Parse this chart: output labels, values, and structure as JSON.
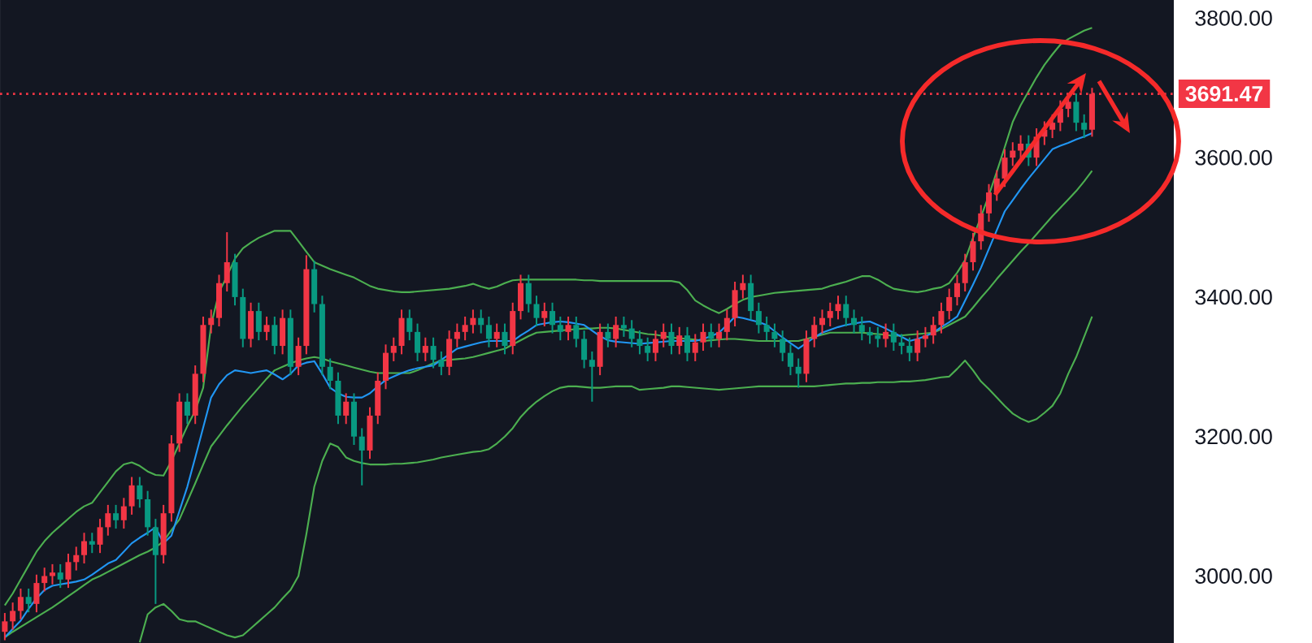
{
  "chart_data": {
    "type": "candlestick",
    "categories": [
      null,
      null,
      null,
      null,
      null,
      null,
      null,
      null,
      null,
      null,
      null,
      null,
      null,
      null,
      null,
      null,
      null,
      null,
      null,
      null,
      null,
      null,
      null,
      null,
      null,
      null,
      null,
      null,
      null,
      null,
      null,
      null,
      null,
      null,
      null,
      null,
      null,
      null,
      null,
      null,
      null,
      null,
      null,
      null,
      null,
      null,
      null,
      null,
      null,
      null,
      null,
      null,
      null,
      null,
      null,
      null,
      null,
      null,
      null,
      null,
      null,
      null,
      null,
      null,
      null,
      null,
      null,
      null,
      null,
      null,
      null,
      null,
      null,
      null,
      null,
      null,
      null,
      null,
      null,
      null,
      null,
      null,
      null,
      null,
      null,
      null,
      null,
      null,
      null,
      null,
      null,
      null,
      null,
      null,
      null,
      null,
      null,
      null,
      null,
      null,
      null,
      null,
      null,
      null,
      null,
      null,
      null,
      null,
      null,
      null,
      null,
      null,
      null,
      null,
      null,
      null,
      null,
      null,
      null,
      null,
      null,
      null,
      null,
      null,
      null,
      null,
      null,
      null,
      null,
      null,
      null,
      null,
      null,
      null,
      null,
      null,
      null,
      null
    ],
    "ylim": [
      2904,
      3826
    ],
    "yticks": [
      {
        "value": 3000,
        "label": "3000.00"
      },
      {
        "value": 3200,
        "label": "3200.00"
      },
      {
        "value": 3400,
        "label": "3400.00"
      },
      {
        "value": 3600,
        "label": "3600.00"
      },
      {
        "value": 3800,
        "label": "3800.00"
      }
    ],
    "tick_labels": "y",
    "ref_lines": [
      {
        "axis": "y",
        "value": 3691.47,
        "label": "3691.47",
        "color": "#f23645",
        "line_style": "dotted"
      }
    ],
    "series": [
      {
        "type": "line",
        "color": "#4caf50",
        "values": [
          2958,
          2975,
          2995,
          3015,
          3035,
          3050,
          3062,
          3072,
          3082,
          3092,
          3100,
          3105,
          3120,
          3135,
          3150,
          3160,
          3163,
          3158,
          3150,
          3145,
          3144,
          3165,
          3190,
          3215,
          3237,
          3270,
          3360,
          3407,
          3430,
          3455,
          3470,
          3478,
          3485,
          3490,
          3495,
          3495,
          3495,
          3480,
          3465,
          3450,
          3445,
          3440,
          3436,
          3432,
          3428,
          3422,
          3416,
          3412,
          3410,
          3408,
          3407,
          3407,
          3408,
          3409,
          3410,
          3411,
          3412,
          3414,
          3416,
          3419,
          3415,
          3412,
          3415,
          3420,
          3424,
          3425,
          3425,
          3425,
          3425,
          3425,
          3425,
          3425,
          3425,
          3424,
          3424,
          3423,
          3423,
          3423,
          3423,
          3423,
          3423,
          3423,
          3423,
          3423,
          3423,
          3421,
          3410,
          3395,
          3388,
          3382,
          3377,
          3383,
          3390,
          3396,
          3400,
          3402,
          3404,
          3406,
          3407,
          3408,
          3409,
          3410,
          3411,
          3412,
          3416,
          3419,
          3422,
          3426,
          3430,
          3430,
          3425,
          3418,
          3412,
          3410,
          3408,
          3407,
          3409,
          3412,
          3414,
          3420,
          3435,
          3453,
          3485,
          3515,
          3546,
          3580,
          3615,
          3651,
          3675,
          3695,
          3715,
          3733,
          3748,
          3762,
          3770,
          3776,
          3782,
          3786
        ]
      },
      {
        "type": "line",
        "color": "#4caf50",
        "values": [
          2912,
          2920,
          2927,
          2934,
          2941,
          2948,
          2955,
          2963,
          2971,
          2979,
          2987,
          2995,
          3000,
          3006,
          3012,
          3018,
          3024,
          3030,
          3035,
          3041,
          3050,
          3066,
          3081,
          3107,
          3133,
          3160,
          3186,
          3201,
          3216,
          3230,
          3244,
          3257,
          3270,
          3283,
          3295,
          3300,
          3305,
          3309,
          3312,
          3314,
          3312,
          3308,
          3305,
          3302,
          3299,
          3296,
          3293,
          3291,
          3291,
          3291,
          3291,
          3291,
          3295,
          3300,
          3305,
          3309,
          3310,
          3311,
          3312,
          3314,
          3317,
          3320,
          3323,
          3326,
          3332,
          3338,
          3344,
          3349,
          3350,
          3351,
          3352,
          3353,
          3354,
          3355,
          3355,
          3356,
          3356,
          3355,
          3353,
          3351,
          3349,
          3347,
          3346,
          3344,
          3342,
          3341,
          3340,
          3339,
          3337,
          3338,
          3339,
          3340,
          3340,
          3339,
          3338,
          3337,
          3337,
          3337,
          3337,
          3337,
          3337,
          3340,
          3343,
          3346,
          3349,
          3349,
          3349,
          3349,
          3349,
          3348,
          3347,
          3346,
          3344,
          3345,
          3346,
          3347,
          3348,
          3349,
          3354,
          3360,
          3366,
          3372,
          3385,
          3399,
          3412,
          3426,
          3439,
          3452,
          3465,
          3477,
          3490,
          3503,
          3516,
          3528,
          3540,
          3552,
          3566,
          3581
        ]
      },
      {
        "type": "line",
        "color": "#4caf50",
        "values": [
          null,
          null,
          null,
          null,
          null,
          null,
          null,
          null,
          null,
          null,
          null,
          null,
          null,
          null,
          null,
          null,
          null,
          2905,
          2945,
          2955,
          2960,
          2950,
          2938,
          2935,
          2935,
          2930,
          2925,
          2920,
          2915,
          2912,
          2915,
          2925,
          2935,
          2945,
          2955,
          2968,
          2980,
          3000,
          3060,
          3128,
          3165,
          3190,
          3185,
          3170,
          3165,
          3162,
          3160,
          3160,
          3160,
          3161,
          3161,
          3162,
          3163,
          3165,
          3167,
          3170,
          3172,
          3174,
          3176,
          3178,
          3179,
          3182,
          3190,
          3200,
          3212,
          3228,
          3240,
          3250,
          3258,
          3265,
          3270,
          3272,
          3272,
          3271,
          3270,
          3270,
          3271,
          3272,
          3272,
          3272,
          3267,
          3268,
          3269,
          3270,
          3272,
          3272,
          3271,
          3270,
          3269,
          3268,
          3267,
          3268,
          3269,
          3270,
          3271,
          3272,
          3272,
          3272,
          3272,
          3272,
          3272,
          3272,
          3272,
          3273,
          3274,
          3275,
          3276,
          3276,
          3277,
          3277,
          3278,
          3278,
          3278,
          3279,
          3279,
          3280,
          3281,
          3283,
          3285,
          3286,
          3297,
          3309,
          3295,
          3279,
          3268,
          3256,
          3244,
          3233,
          3226,
          3221,
          3225,
          3234,
          3244,
          3262,
          3290,
          3314,
          3343,
          3372
        ]
      },
      {
        "type": "line",
        "color": "#2196f3",
        "values": [
          2912,
          2924,
          2936,
          2953,
          2968,
          2980,
          2986,
          2988,
          2990,
          2992,
          2995,
          3002,
          3010,
          3018,
          3023,
          3035,
          3047,
          3055,
          3062,
          3070,
          3047,
          3058,
          3093,
          3128,
          3170,
          3213,
          3256,
          3275,
          3288,
          3295,
          3293,
          3291,
          3293,
          3295,
          3289,
          3282,
          3290,
          3302,
          3306,
          3308,
          3290,
          3270,
          3262,
          3257,
          3256,
          3256,
          3262,
          3272,
          3281,
          3286,
          3291,
          3295,
          3298,
          3300,
          3302,
          3310,
          3318,
          3326,
          3329,
          3332,
          3335,
          3337,
          3337,
          3337,
          3337,
          3345,
          3352,
          3360,
          3362,
          3364,
          3365,
          3364,
          3362,
          3360,
          3352,
          3344,
          3338,
          3336,
          3335,
          3334,
          3333,
          3334,
          3335,
          3336,
          3337,
          3337,
          3337,
          3337,
          3340,
          3344,
          3349,
          3360,
          3372,
          3370,
          3367,
          3364,
          3360,
          3351,
          3342,
          3334,
          3326,
          3334,
          3342,
          3349,
          3353,
          3357,
          3360,
          3362,
          3364,
          3365,
          3360,
          3355,
          3349,
          3343,
          3337,
          3340,
          3344,
          3349,
          3357,
          3364,
          3372,
          3395,
          3418,
          3442,
          3469,
          3496,
          3523,
          3539,
          3555,
          3570,
          3584,
          3598,
          3612,
          3617,
          3621,
          3626,
          3630,
          3635
        ]
      },
      {
        "ohlc": [
          [
            2920,
            2947,
            2908,
            2935
          ],
          [
            2935,
            2962,
            2923,
            2950
          ],
          [
            2950,
            2982,
            2938,
            2970
          ],
          [
            2970,
            2982,
            2948,
            2960
          ],
          [
            2960,
            3002,
            2948,
            2990
          ],
          [
            2990,
            3012,
            2978,
            3000
          ],
          [
            3000,
            3017,
            2988,
            3005
          ],
          [
            3005,
            3017,
            2983,
            2995
          ],
          [
            2995,
            3032,
            2983,
            3020
          ],
          [
            3020,
            3042,
            3008,
            3030
          ],
          [
            3030,
            3062,
            3018,
            3050
          ],
          [
            3050,
            3062,
            3033,
            3045
          ],
          [
            3045,
            3082,
            3033,
            3070
          ],
          [
            3070,
            3102,
            3058,
            3090
          ],
          [
            3090,
            3102,
            3068,
            3080
          ],
          [
            3080,
            3112,
            3068,
            3100
          ],
          [
            3100,
            3142,
            3088,
            3130
          ],
          [
            3130,
            3142,
            3098,
            3110
          ],
          [
            3110,
            3122,
            3058,
            3070
          ],
          [
            3070,
            3082,
            2960,
            3030
          ],
          [
            3030,
            3102,
            3018,
            3090
          ],
          [
            3090,
            3202,
            3078,
            3190
          ],
          [
            3190,
            3262,
            3178,
            3250
          ],
          [
            3250,
            3262,
            3218,
            3230
          ],
          [
            3230,
            3302,
            3218,
            3290
          ],
          [
            3290,
            3372,
            3278,
            3360
          ],
          [
            3360,
            3382,
            3348,
            3370
          ],
          [
            3370,
            3432,
            3358,
            3420
          ],
          [
            3420,
            3493,
            3408,
            3450
          ],
          [
            3450,
            3462,
            3388,
            3400
          ],
          [
            3400,
            3412,
            3328,
            3340
          ],
          [
            3340,
            3392,
            3328,
            3380
          ],
          [
            3380,
            3392,
            3338,
            3350
          ],
          [
            3350,
            3372,
            3338,
            3360
          ],
          [
            3360,
            3372,
            3318,
            3330
          ],
          [
            3330,
            3382,
            3318,
            3370
          ],
          [
            3370,
            3382,
            3288,
            3300
          ],
          [
            3300,
            3342,
            3288,
            3330
          ],
          [
            3330,
            3460,
            3318,
            3440
          ],
          [
            3440,
            3452,
            3378,
            3390
          ],
          [
            3390,
            3402,
            3288,
            3300
          ],
          [
            3300,
            3312,
            3268,
            3280
          ],
          [
            3280,
            3292,
            3218,
            3230
          ],
          [
            3230,
            3262,
            3218,
            3250
          ],
          [
            3250,
            3262,
            3188,
            3200
          ],
          [
            3200,
            3212,
            3130,
            3180
          ],
          [
            3180,
            3242,
            3168,
            3230
          ],
          [
            3230,
            3292,
            3218,
            3280
          ],
          [
            3280,
            3332,
            3268,
            3320
          ],
          [
            3320,
            3342,
            3308,
            3330
          ],
          [
            3330,
            3382,
            3318,
            3370
          ],
          [
            3370,
            3382,
            3338,
            3350
          ],
          [
            3350,
            3362,
            3308,
            3320
          ],
          [
            3320,
            3342,
            3308,
            3330
          ],
          [
            3330,
            3342,
            3298,
            3310
          ],
          [
            3310,
            3322,
            3288,
            3300
          ],
          [
            3300,
            3352,
            3288,
            3340
          ],
          [
            3340,
            3362,
            3328,
            3350
          ],
          [
            3350,
            3372,
            3338,
            3360
          ],
          [
            3360,
            3382,
            3348,
            3370
          ],
          [
            3370,
            3382,
            3348,
            3360
          ],
          [
            3360,
            3372,
            3328,
            3340
          ],
          [
            3340,
            3362,
            3328,
            3350
          ],
          [
            3350,
            3362,
            3318,
            3330
          ],
          [
            3330,
            3392,
            3318,
            3380
          ],
          [
            3380,
            3432,
            3368,
            3420
          ],
          [
            3420,
            3432,
            3378,
            3390
          ],
          [
            3390,
            3402,
            3358,
            3370
          ],
          [
            3370,
            3392,
            3358,
            3380
          ],
          [
            3380,
            3392,
            3348,
            3360
          ],
          [
            3360,
            3372,
            3338,
            3350
          ],
          [
            3350,
            3372,
            3338,
            3360
          ],
          [
            3360,
            3372,
            3328,
            3340
          ],
          [
            3340,
            3352,
            3298,
            3310
          ],
          [
            3310,
            3322,
            3250,
            3300
          ],
          [
            3300,
            3362,
            3288,
            3350
          ],
          [
            3350,
            3362,
            3328,
            3340
          ],
          [
            3340,
            3372,
            3328,
            3360
          ],
          [
            3360,
            3372,
            3343,
            3355
          ],
          [
            3355,
            3367,
            3328,
            3340
          ],
          [
            3340,
            3352,
            3318,
            3330
          ],
          [
            3330,
            3342,
            3308,
            3320
          ],
          [
            3320,
            3352,
            3308,
            3340
          ],
          [
            3340,
            3362,
            3328,
            3350
          ],
          [
            3350,
            3362,
            3318,
            3330
          ],
          [
            3330,
            3357,
            3318,
            3345
          ],
          [
            3345,
            3357,
            3308,
            3320
          ],
          [
            3320,
            3347,
            3308,
            3335
          ],
          [
            3335,
            3362,
            3323,
            3350
          ],
          [
            3350,
            3362,
            3328,
            3340
          ],
          [
            3340,
            3362,
            3328,
            3350
          ],
          [
            3350,
            3382,
            3338,
            3370
          ],
          [
            3370,
            3422,
            3358,
            3410
          ],
          [
            3410,
            3432,
            3398,
            3420
          ],
          [
            3420,
            3432,
            3368,
            3380
          ],
          [
            3380,
            3392,
            3348,
            3360
          ],
          [
            3360,
            3372,
            3338,
            3350
          ],
          [
            3350,
            3362,
            3328,
            3340
          ],
          [
            3340,
            3352,
            3308,
            3320
          ],
          [
            3320,
            3332,
            3288,
            3300
          ],
          [
            3300,
            3312,
            3270,
            3290
          ],
          [
            3290,
            3352,
            3278,
            3340
          ],
          [
            3340,
            3372,
            3328,
            3360
          ],
          [
            3360,
            3382,
            3348,
            3370
          ],
          [
            3370,
            3392,
            3358,
            3380
          ],
          [
            3380,
            3402,
            3368,
            3390
          ],
          [
            3390,
            3402,
            3358,
            3370
          ],
          [
            3370,
            3382,
            3348,
            3360
          ],
          [
            3360,
            3372,
            3338,
            3350
          ],
          [
            3350,
            3357,
            3333,
            3345
          ],
          [
            3345,
            3357,
            3328,
            3340
          ],
          [
            3340,
            3362,
            3328,
            3350
          ],
          [
            3350,
            3362,
            3323,
            3335
          ],
          [
            3335,
            3347,
            3318,
            3330
          ],
          [
            3330,
            3342,
            3308,
            3320
          ],
          [
            3320,
            3352,
            3308,
            3340
          ],
          [
            3340,
            3357,
            3328,
            3345
          ],
          [
            3345,
            3372,
            3333,
            3360
          ],
          [
            3360,
            3392,
            3348,
            3380
          ],
          [
            3380,
            3412,
            3368,
            3400
          ],
          [
            3400,
            3432,
            3388,
            3420
          ],
          [
            3420,
            3462,
            3408,
            3450
          ],
          [
            3450,
            3492,
            3438,
            3480
          ],
          [
            3480,
            3532,
            3468,
            3520
          ],
          [
            3520,
            3562,
            3508,
            3550
          ],
          [
            3550,
            3582,
            3538,
            3570
          ],
          [
            3570,
            3612,
            3558,
            3600
          ],
          [
            3600,
            3622,
            3588,
            3610
          ],
          [
            3610,
            3632,
            3598,
            3620
          ],
          [
            3620,
            3632,
            3588,
            3600
          ],
          [
            3600,
            3642,
            3588,
            3630
          ],
          [
            3630,
            3652,
            3618,
            3640
          ],
          [
            3640,
            3662,
            3628,
            3650
          ],
          [
            3650,
            3682,
            3638,
            3670
          ],
          [
            3670,
            3692,
            3658,
            3680
          ],
          [
            3680,
            3692,
            3638,
            3650
          ],
          [
            3650,
            3662,
            3628,
            3640
          ],
          [
            3640,
            3700,
            3630,
            3691.47
          ]
        ],
        "colors": [
          "#f23645",
          "#f23645",
          "#f23645",
          "#089981",
          "#f23645",
          "#f23645",
          "#f23645",
          "#089981",
          "#f23645",
          "#f23645",
          "#f23645",
          "#089981",
          "#f23645",
          "#f23645",
          "#089981",
          "#f23645",
          "#f23645",
          "#089981",
          "#089981",
          "#089981",
          "#f23645",
          "#f23645",
          "#f23645",
          "#089981",
          "#f23645",
          "#f23645",
          "#f23645",
          "#f23645",
          "#f23645",
          "#089981",
          "#089981",
          "#f23645",
          "#089981",
          "#f23645",
          "#089981",
          "#f23645",
          "#089981",
          "#f23645",
          "#f23645",
          "#089981",
          "#089981",
          "#089981",
          "#089981",
          "#f23645",
          "#089981",
          "#089981",
          "#f23645",
          "#f23645",
          "#f23645",
          "#f23645",
          "#f23645",
          "#089981",
          "#089981",
          "#f23645",
          "#089981",
          "#089981",
          "#f23645",
          "#f23645",
          "#f23645",
          "#f23645",
          "#089981",
          "#089981",
          "#f23645",
          "#089981",
          "#f23645",
          "#f23645",
          "#089981",
          "#089981",
          "#f23645",
          "#089981",
          "#089981",
          "#f23645",
          "#089981",
          "#089981",
          "#089981",
          "#f23645",
          "#089981",
          "#f23645",
          "#089981",
          "#089981",
          "#089981",
          "#089981",
          "#f23645",
          "#f23645",
          "#089981",
          "#f23645",
          "#089981",
          "#f23645",
          "#f23645",
          "#089981",
          "#f23645",
          "#f23645",
          "#f23645",
          "#f23645",
          "#089981",
          "#089981",
          "#089981",
          "#089981",
          "#089981",
          "#089981",
          "#089981",
          "#f23645",
          "#f23645",
          "#f23645",
          "#f23645",
          "#f23645",
          "#089981",
          "#089981",
          "#089981",
          "#089981",
          "#089981",
          "#f23645",
          "#089981",
          "#089981",
          "#089981",
          "#f23645",
          "#f23645",
          "#f23645",
          "#f23645",
          "#f23645",
          "#f23645",
          "#f23645",
          "#f23645",
          "#f23645",
          "#f23645",
          "#f23645",
          "#f23645",
          "#f23645",
          "#f23645",
          "#089981",
          "#f23645",
          "#f23645",
          "#f23645",
          "#f23645",
          "#f23645",
          "#089981",
          "#089981",
          "#f23645"
        ]
      }
    ]
  }
}
